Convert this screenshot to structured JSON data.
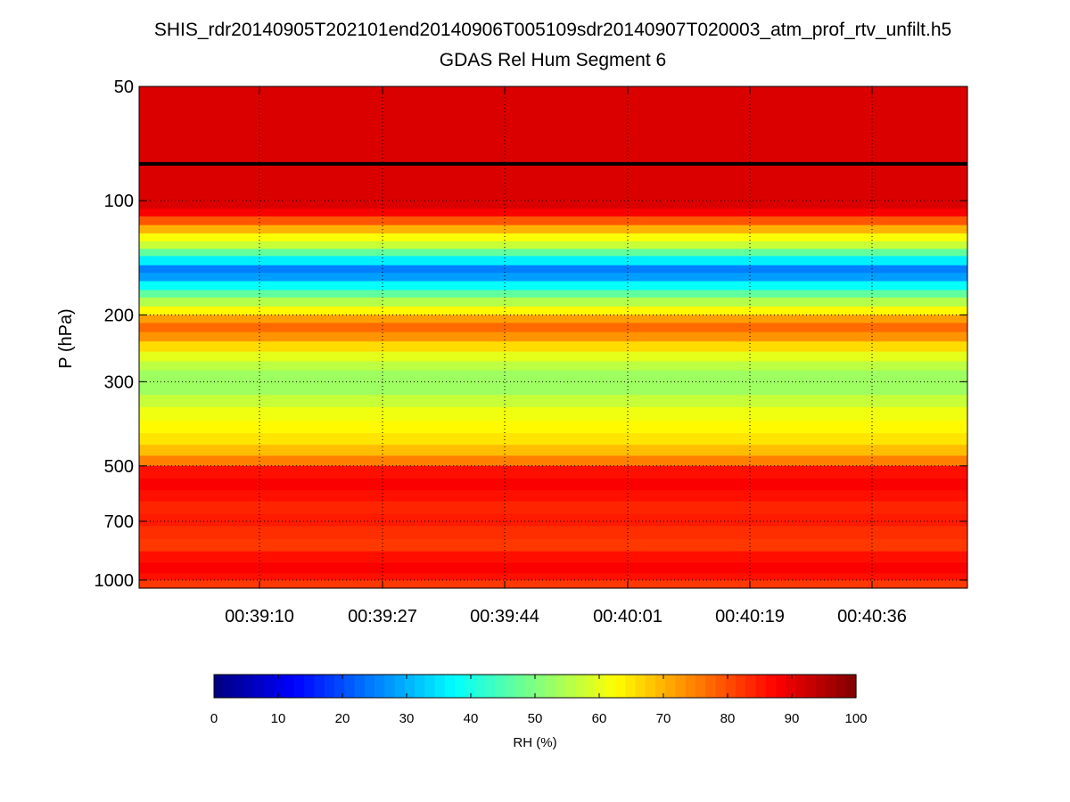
{
  "chart_data": {
    "type": "heatmap",
    "title": "SHIS_rdr20140905T202101end20140906T005109sdr20140907T020003_atm_prof_rtv_unfilt.h5",
    "subtitle": "GDAS Rel Hum Segment 6",
    "ylabel": "P (hPa)",
    "y_scale": "log",
    "y_reversed": true,
    "ylim": [
      50,
      1050
    ],
    "y_ticks": [
      50,
      100,
      200,
      300,
      500,
      700,
      1000
    ],
    "x_tick_labels": [
      "00:39:10",
      "00:39:27",
      "00:39:44",
      "00:40:01",
      "00:40:19",
      "00:40:36"
    ],
    "grid": true,
    "colormap": "jet",
    "colorbar": {
      "label": "RH (%)",
      "range": [
        0,
        100
      ],
      "ticks": [
        "0",
        "10",
        "20",
        "30",
        "40",
        "50",
        "60",
        "70",
        "80",
        "90",
        "100"
      ]
    },
    "tropopause_hPa": 80,
    "rh_profile": [
      {
        "p": 50,
        "rh": 91
      },
      {
        "p": 102,
        "rh": 91
      },
      {
        "p": 105,
        "rh": 88
      },
      {
        "p": 110,
        "rh": 79
      },
      {
        "p": 116,
        "rh": 70
      },
      {
        "p": 122,
        "rh": 62
      },
      {
        "p": 128,
        "rh": 57
      },
      {
        "p": 134,
        "rh": 47
      },
      {
        "p": 140,
        "rh": 36
      },
      {
        "p": 148,
        "rh": 25
      },
      {
        "p": 155,
        "rh": 28
      },
      {
        "p": 163,
        "rh": 38
      },
      {
        "p": 172,
        "rh": 47
      },
      {
        "p": 180,
        "rh": 55
      },
      {
        "p": 190,
        "rh": 63
      },
      {
        "p": 200,
        "rh": 72
      },
      {
        "p": 210,
        "rh": 77
      },
      {
        "p": 222,
        "rh": 73
      },
      {
        "p": 235,
        "rh": 66
      },
      {
        "p": 250,
        "rh": 60
      },
      {
        "p": 265,
        "rh": 56
      },
      {
        "p": 280,
        "rh": 53
      },
      {
        "p": 300,
        "rh": 53
      },
      {
        "p": 325,
        "rh": 57
      },
      {
        "p": 350,
        "rh": 61
      },
      {
        "p": 380,
        "rh": 63
      },
      {
        "p": 410,
        "rh": 65
      },
      {
        "p": 440,
        "rh": 69
      },
      {
        "p": 470,
        "rh": 75
      },
      {
        "p": 500,
        "rh": 86
      },
      {
        "p": 540,
        "rh": 88
      },
      {
        "p": 580,
        "rh": 86
      },
      {
        "p": 620,
        "rh": 84
      },
      {
        "p": 670,
        "rh": 85
      },
      {
        "p": 720,
        "rh": 83
      },
      {
        "p": 780,
        "rh": 82
      },
      {
        "p": 840,
        "rh": 86
      },
      {
        "p": 900,
        "rh": 88
      },
      {
        "p": 960,
        "rh": 86
      },
      {
        "p": 1000,
        "rh": 82
      },
      {
        "p": 1050,
        "rh": 82
      }
    ]
  }
}
